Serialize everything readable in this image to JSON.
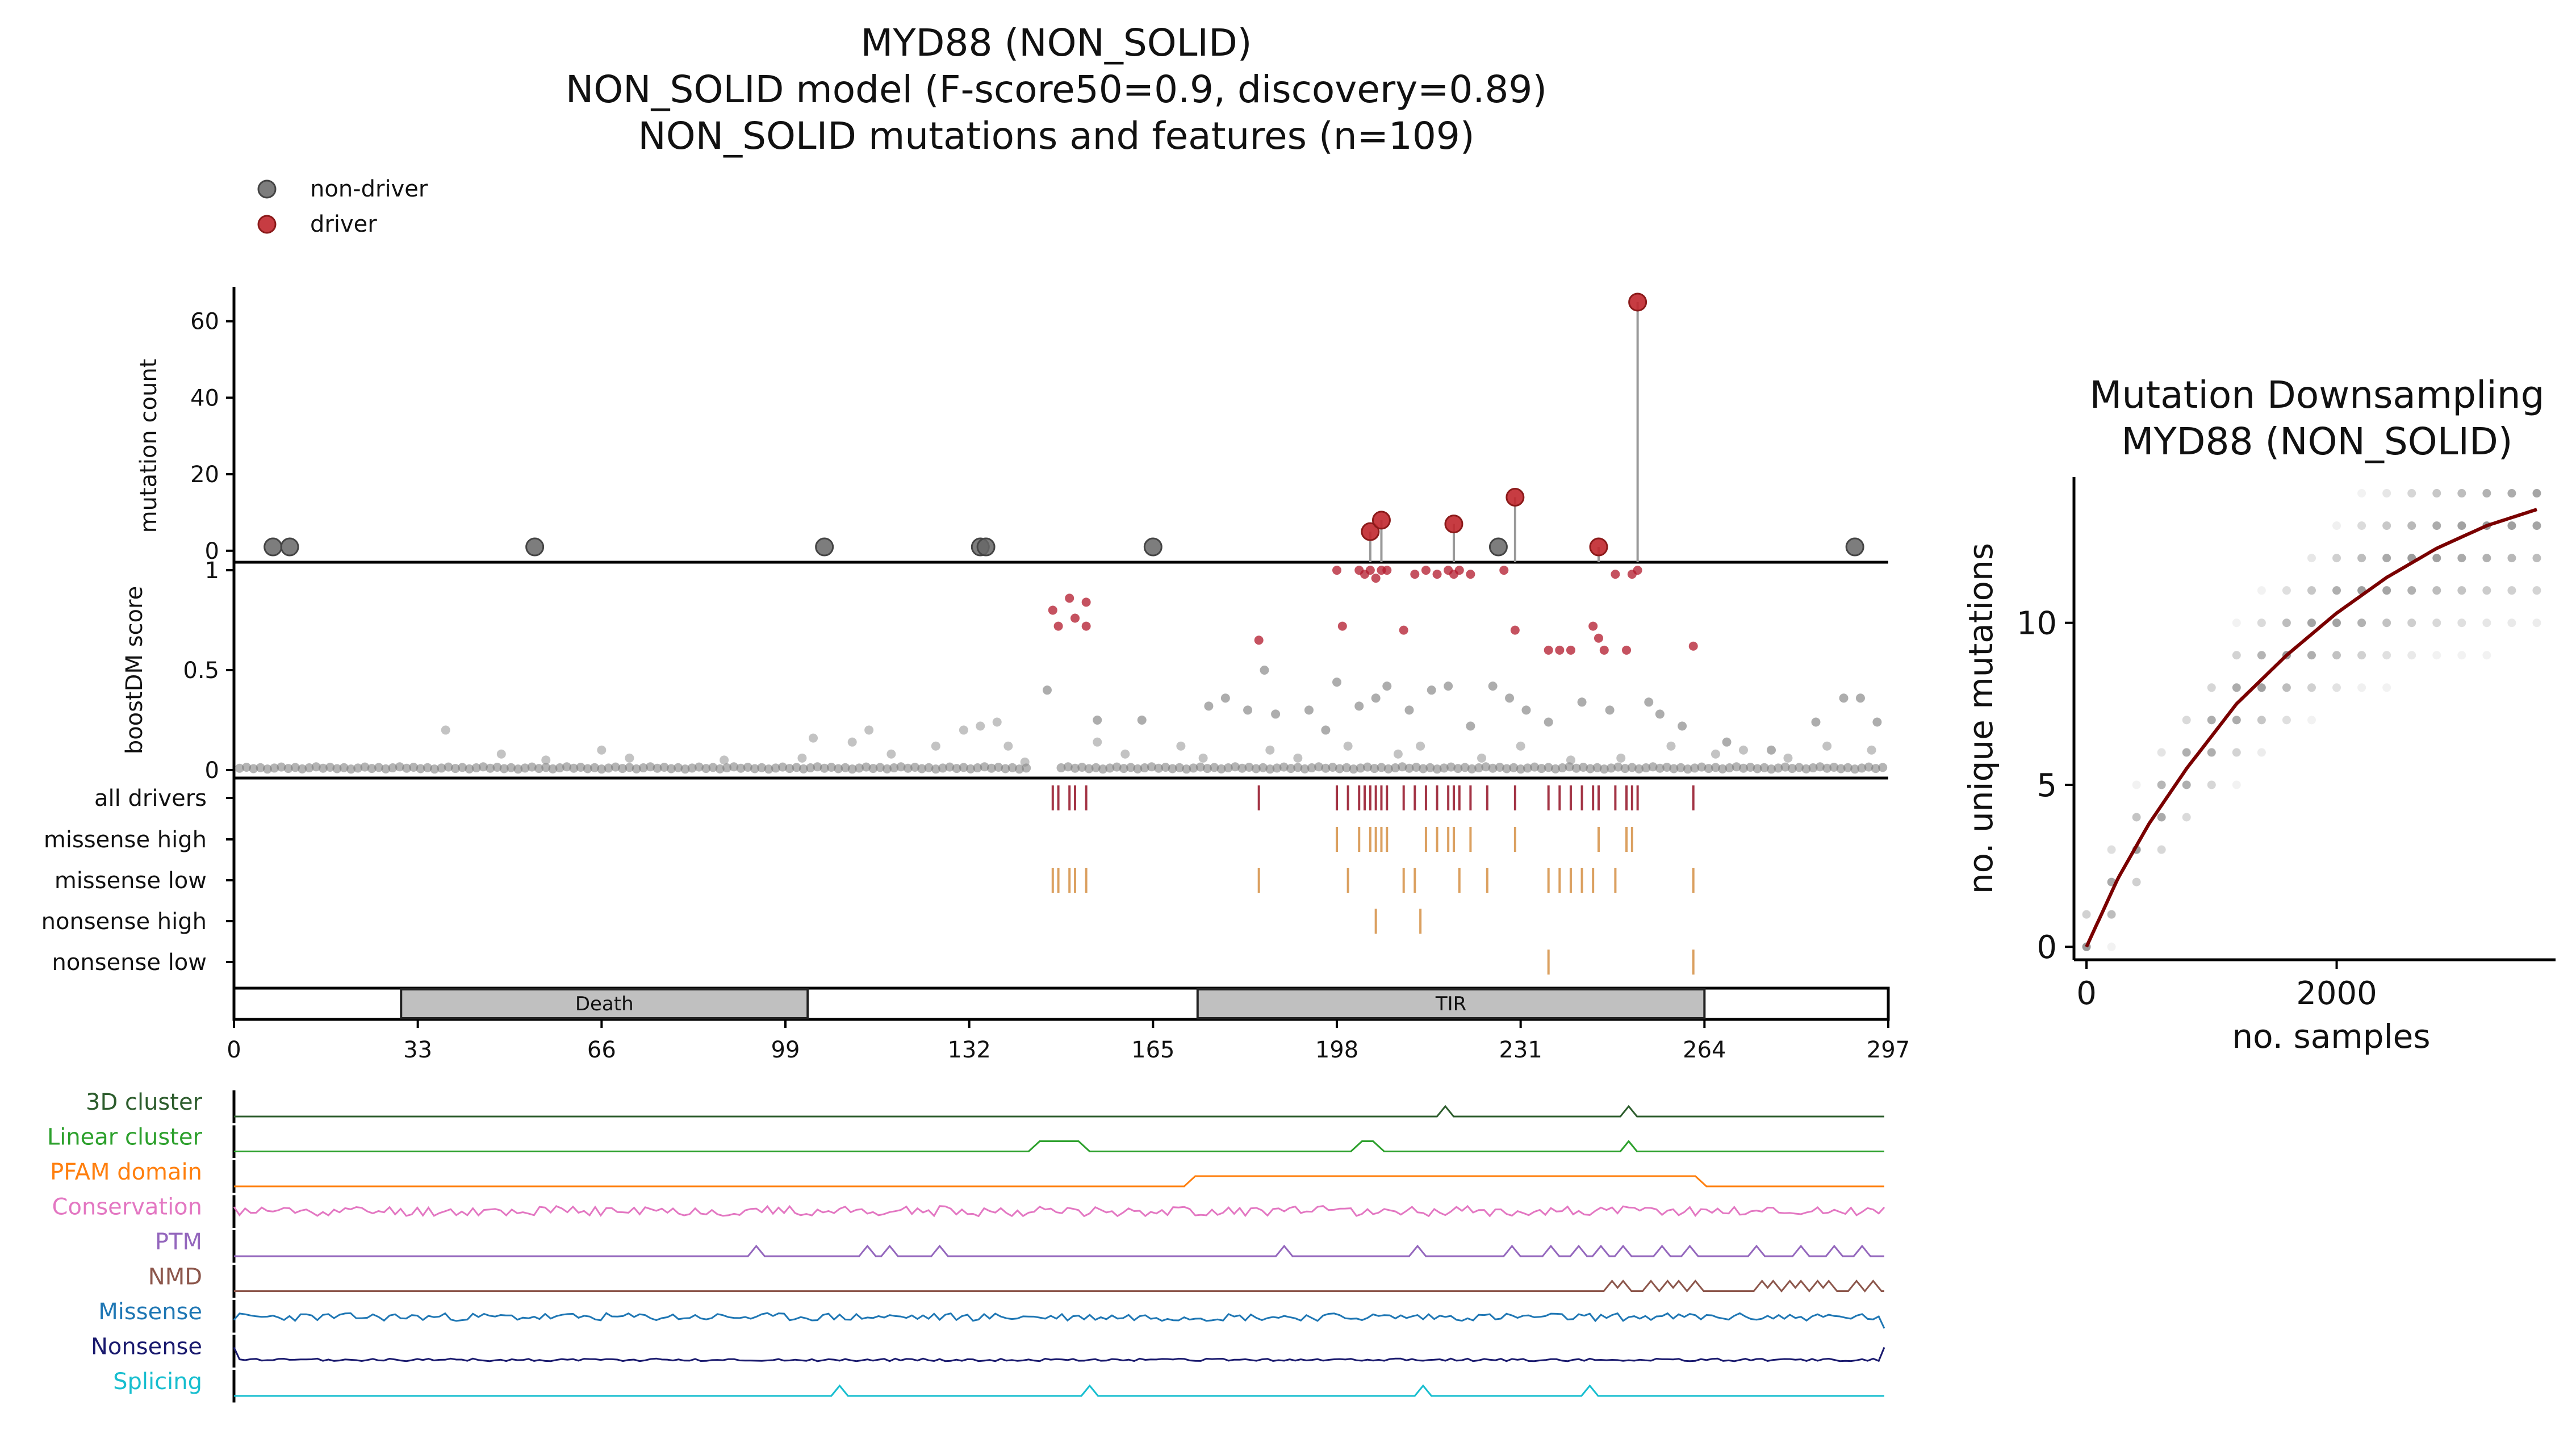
{
  "title": {
    "line1": "MYD88 (NON_SOLID)",
    "line2": "NON_SOLID model (F-score50=0.9, discovery=0.89)",
    "line3": "NON_SOLID mutations and features (n=109)"
  },
  "legend": {
    "non_driver": "non-driver",
    "driver": "driver"
  },
  "colors": {
    "driver": "#b2182b",
    "non_driver": "#555555",
    "all_drivers_tick": "#a33445",
    "missense_tick": "#dba060",
    "domain_fill": "#c0c0c0",
    "fit_line": "#7a0000"
  },
  "chart_data": [
    {
      "id": "needle",
      "type": "scatter",
      "ylabel": "mutation count",
      "yticks": [
        "0",
        "20",
        "40",
        "60"
      ],
      "ylim": [
        -3,
        69
      ],
      "xlim": [
        0,
        297
      ],
      "non_driver": [
        [
          7,
          1
        ],
        [
          10,
          1
        ],
        [
          54,
          1
        ],
        [
          106,
          1
        ],
        [
          134,
          1
        ],
        [
          135,
          1
        ],
        [
          165,
          1
        ],
        [
          227,
          1
        ],
        [
          291,
          1
        ]
      ],
      "driver": [
        [
          204,
          5
        ],
        [
          206,
          8
        ],
        [
          219,
          7
        ],
        [
          230,
          14
        ],
        [
          245,
          1
        ],
        [
          252,
          65
        ]
      ]
    },
    {
      "id": "boostdm",
      "type": "scatter",
      "ylabel": "boostDM score",
      "yticks": [
        "0",
        "0.5",
        "1"
      ],
      "ylim": [
        -0.04,
        1.04
      ],
      "xlim": [
        0,
        297
      ],
      "high": [
        [
          147,
          0.8
        ],
        [
          148,
          0.72
        ],
        [
          150,
          0.86
        ],
        [
          151,
          0.76
        ],
        [
          153,
          0.72
        ],
        [
          153,
          0.84
        ],
        [
          184,
          0.65
        ],
        [
          198,
          1.0
        ],
        [
          199,
          0.72
        ],
        [
          202,
          1.0
        ],
        [
          203,
          0.98
        ],
        [
          204,
          1.0
        ],
        [
          205,
          0.96
        ],
        [
          206,
          1.0
        ],
        [
          207,
          1.0
        ],
        [
          210,
          0.7
        ],
        [
          212,
          0.98
        ],
        [
          214,
          1.0
        ],
        [
          216,
          0.98
        ],
        [
          218,
          1.0
        ],
        [
          219,
          0.98
        ],
        [
          220,
          1.0
        ],
        [
          222,
          0.98
        ],
        [
          228,
          1.0
        ],
        [
          230,
          0.7
        ],
        [
          236,
          0.6
        ],
        [
          238,
          0.6
        ],
        [
          240,
          0.6
        ],
        [
          244,
          0.72
        ],
        [
          245,
          0.66
        ],
        [
          246,
          0.6
        ],
        [
          248,
          0.98
        ],
        [
          250,
          0.6
        ],
        [
          251,
          0.98
        ],
        [
          252,
          1.0
        ],
        [
          262,
          0.62
        ]
      ],
      "mid": [
        [
          146,
          0.4
        ],
        [
          155,
          0.25
        ],
        [
          163,
          0.25
        ],
        [
          175,
          0.32
        ],
        [
          178,
          0.36
        ],
        [
          182,
          0.3
        ],
        [
          185,
          0.5
        ],
        [
          187,
          0.28
        ],
        [
          193,
          0.3
        ],
        [
          196,
          0.2
        ],
        [
          198,
          0.44
        ],
        [
          202,
          0.32
        ],
        [
          205,
          0.36
        ],
        [
          207,
          0.42
        ],
        [
          211,
          0.3
        ],
        [
          215,
          0.4
        ],
        [
          218,
          0.42
        ],
        [
          222,
          0.22
        ],
        [
          226,
          0.42
        ],
        [
          229,
          0.36
        ],
        [
          232,
          0.3
        ],
        [
          236,
          0.24
        ],
        [
          242,
          0.34
        ],
        [
          247,
          0.3
        ],
        [
          254,
          0.34
        ],
        [
          256,
          0.28
        ],
        [
          260,
          0.22
        ],
        [
          268,
          0.14
        ],
        [
          276,
          0.1
        ],
        [
          284,
          0.24
        ],
        [
          289,
          0.36
        ],
        [
          292,
          0.36
        ],
        [
          295,
          0.24
        ]
      ],
      "low_clusters": [
        [
          38,
          0.2
        ],
        [
          48,
          0.08
        ],
        [
          56,
          0.05
        ],
        [
          66,
          0.1
        ],
        [
          71,
          0.06
        ],
        [
          88,
          0.05
        ],
        [
          102,
          0.06
        ],
        [
          104,
          0.16
        ],
        [
          111,
          0.14
        ],
        [
          114,
          0.2
        ],
        [
          118,
          0.08
        ],
        [
          126,
          0.12
        ],
        [
          131,
          0.2
        ],
        [
          134,
          0.22
        ],
        [
          137,
          0.24
        ],
        [
          139,
          0.12
        ],
        [
          142,
          0.04
        ],
        [
          155,
          0.14
        ],
        [
          160,
          0.08
        ],
        [
          170,
          0.12
        ],
        [
          174,
          0.06
        ],
        [
          186,
          0.1
        ],
        [
          191,
          0.06
        ],
        [
          200,
          0.12
        ],
        [
          209,
          0.08
        ],
        [
          213,
          0.12
        ],
        [
          224,
          0.06
        ],
        [
          231,
          0.12
        ],
        [
          240,
          0.05
        ],
        [
          249,
          0.06
        ],
        [
          258,
          0.12
        ],
        [
          266,
          0.08
        ],
        [
          271,
          0.1
        ],
        [
          279,
          0.06
        ],
        [
          286,
          0.12
        ],
        [
          294,
          0.1
        ]
      ]
    },
    {
      "id": "tracks",
      "type": "scatter",
      "rows": [
        {
          "label": "all drivers",
          "positions": [
            147,
            148,
            150,
            151,
            153,
            184,
            198,
            200,
            202,
            203,
            204,
            205,
            206,
            207,
            210,
            212,
            214,
            216,
            218,
            219,
            220,
            222,
            225,
            230,
            236,
            238,
            240,
            242,
            244,
            245,
            248,
            250,
            251,
            252,
            262
          ]
        },
        {
          "label": "missense high",
          "positions": [
            198,
            202,
            204,
            205,
            206,
            207,
            214,
            216,
            218,
            219,
            222,
            230,
            245,
            250,
            251
          ]
        },
        {
          "label": "missense low",
          "positions": [
            147,
            148,
            150,
            151,
            153,
            184,
            200,
            210,
            212,
            220,
            225,
            236,
            238,
            240,
            242,
            244,
            248,
            262
          ]
        },
        {
          "label": "nonsense high",
          "positions": [
            205,
            213
          ]
        },
        {
          "label": "nonsense low",
          "positions": [
            236,
            262
          ]
        }
      ]
    },
    {
      "id": "domains",
      "type": "bar",
      "xticks": [
        "0",
        "33",
        "66",
        "99",
        "132",
        "165",
        "198",
        "231",
        "264",
        "297"
      ],
      "xlim": [
        0,
        297
      ],
      "domains": [
        {
          "name": "Death",
          "start": 30,
          "end": 103
        },
        {
          "name": "TIR",
          "start": 173,
          "end": 264
        }
      ]
    },
    {
      "id": "features",
      "type": "line",
      "xlim": [
        0,
        297
      ],
      "rows": [
        {
          "label": "3D cluster",
          "color": "#2d5d2d",
          "mode": "spike",
          "peaks": [
            218,
            251
          ]
        },
        {
          "label": "Linear cluster",
          "color": "#2ca02c",
          "mode": "plateau",
          "plateaus": [
            [
              145,
              152
            ],
            [
              203,
              205
            ]
          ],
          "peaks": [
            251
          ]
        },
        {
          "label": "PFAM domain",
          "color": "#ff7f0e",
          "mode": "plateau",
          "plateaus": [
            [
              173,
              263
            ]
          ]
        },
        {
          "label": "Conservation",
          "color": "#e377c2",
          "mode": "noise",
          "seed": 11
        },
        {
          "label": "PTM",
          "color": "#9467bd",
          "mode": "spike",
          "peaks": [
            94,
            114,
            118,
            127,
            189,
            213,
            230,
            237,
            242,
            246,
            250,
            257,
            262,
            274,
            282,
            288,
            293
          ]
        },
        {
          "label": "NMD",
          "color": "#8c564b",
          "mode": "nmd",
          "peaks": [
            248,
            250,
            255,
            258,
            260,
            263,
            275,
            277,
            280,
            282,
            285,
            287,
            292,
            295
          ]
        },
        {
          "label": "Missense",
          "color": "#1f77b4",
          "mode": "noise",
          "seed": 23
        },
        {
          "label": "Nonsense",
          "color": "#1a1a6e",
          "mode": "noise",
          "seed": 37
        },
        {
          "label": "Splicing",
          "color": "#17becf",
          "mode": "spike",
          "peaks": [
            109,
            154,
            214,
            244
          ]
        }
      ]
    },
    {
      "id": "downsampling",
      "type": "scatter",
      "title_line1": "Mutation Downsampling",
      "title_line2": "MYD88 (NON_SOLID)",
      "xlabel": "no. samples",
      "ylabel": "no. unique mutations",
      "xticks": [
        "0",
        "2000"
      ],
      "yticks": [
        "0",
        "5",
        "10"
      ],
      "xlim": [
        -100,
        3750
      ],
      "ylim": [
        -0.4,
        14.5
      ],
      "step": 200,
      "fit_curve": [
        [
          0,
          0
        ],
        [
          250,
          2.1
        ],
        [
          500,
          3.8
        ],
        [
          800,
          5.5
        ],
        [
          1200,
          7.5
        ],
        [
          1600,
          9.0
        ],
        [
          2000,
          10.3
        ],
        [
          2400,
          11.4
        ],
        [
          2800,
          12.3
        ],
        [
          3200,
          13.0
        ],
        [
          3600,
          13.5
        ]
      ]
    }
  ]
}
